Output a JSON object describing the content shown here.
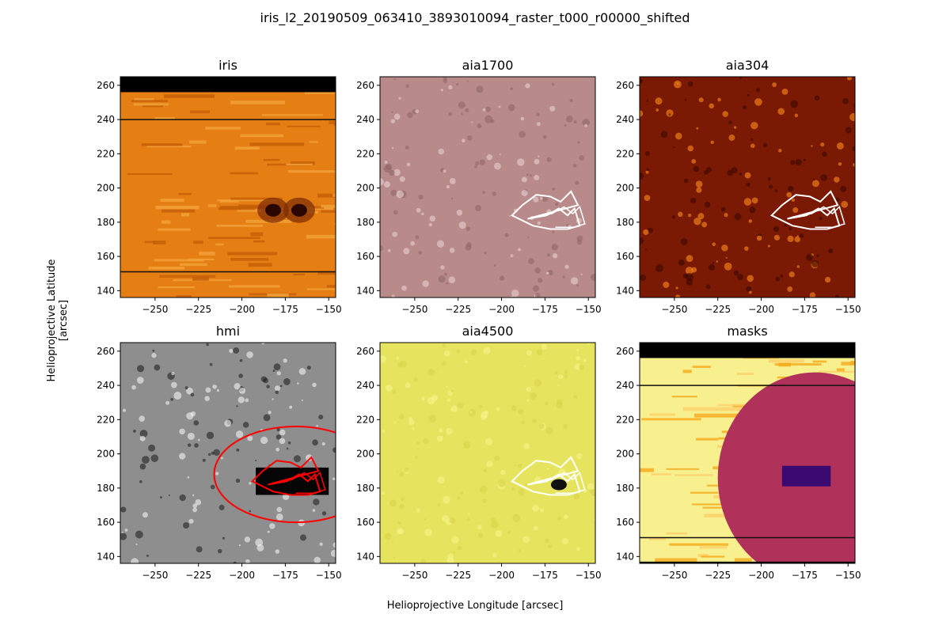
{
  "suptitle": "iris_l2_20190509_063410_3893010094_raster_t000_r00000_shifted",
  "xlabel": "Helioprojective Longitude [arcsec]",
  "ylabel": "Helioprojective Latitude [arcsec]",
  "chart_data": [
    {
      "type": "heatmap",
      "title": "iris",
      "colormap": "afmhot",
      "xlim": [
        -270,
        -146
      ],
      "ylim": [
        136,
        265
      ],
      "xticks": [
        -250,
        -225,
        -200,
        -175,
        -150
      ],
      "yticks": [
        140,
        160,
        180,
        200,
        220,
        240,
        260
      ],
      "features": {
        "black_band_top": [
          256,
          265
        ],
        "scan_lines_y": [
          240,
          151
        ],
        "dark_spots": [
          {
            "x": -182,
            "y": 187
          },
          {
            "x": -167,
            "y": 187
          }
        ]
      }
    },
    {
      "type": "heatmap",
      "title": "aia1700",
      "colormap": "sdoaia1700",
      "xlim": [
        -270,
        -146
      ],
      "ylim": [
        136,
        265
      ],
      "xticks": [
        -250,
        -225,
        -200,
        -175,
        -150
      ],
      "yticks": [
        140,
        160,
        180,
        200,
        220,
        240,
        260
      ],
      "contour_color": "#ffffff"
    },
    {
      "type": "heatmap",
      "title": "aia304",
      "colormap": "sdoaia304",
      "xlim": [
        -270,
        -146
      ],
      "ylim": [
        136,
        265
      ],
      "xticks": [
        -250,
        -225,
        -200,
        -175,
        -150
      ],
      "yticks": [
        140,
        160,
        180,
        200,
        220,
        240,
        260
      ],
      "contour_color": "#ffffff"
    },
    {
      "type": "heatmap",
      "title": "hmi",
      "colormap": "gray",
      "xlim": [
        -270,
        -146
      ],
      "ylim": [
        136,
        265
      ],
      "xticks": [
        -250,
        -225,
        -200,
        -175,
        -150
      ],
      "yticks": [
        140,
        160,
        180,
        200,
        220,
        240,
        260
      ],
      "contour_color": "#ff0000",
      "ellipse": {
        "cx": -169,
        "cy": 188,
        "rx": 47,
        "ry": 28
      }
    },
    {
      "type": "heatmap",
      "title": "aia4500",
      "colormap": "sdoaia4500",
      "xlim": [
        -270,
        -146
      ],
      "ylim": [
        136,
        265
      ],
      "xticks": [
        -250,
        -225,
        -200,
        -175,
        -150
      ],
      "yticks": [
        140,
        160,
        180,
        200,
        220,
        240,
        260
      ],
      "contour_color": "#ffffff"
    },
    {
      "type": "heatmap",
      "title": "masks",
      "colormap": "inferno",
      "xlim": [
        -270,
        -146
      ],
      "ylim": [
        136,
        265
      ],
      "xticks": [
        -250,
        -225,
        -200,
        -175,
        -150
      ],
      "yticks": [
        140,
        160,
        180,
        200,
        220,
        240,
        260
      ],
      "features": {
        "black_band_top": [
          256,
          265
        ],
        "scan_lines_y": [
          240,
          151
        ],
        "disk": {
          "cx": -169,
          "cy": 186,
          "r": 28
        }
      }
    }
  ]
}
